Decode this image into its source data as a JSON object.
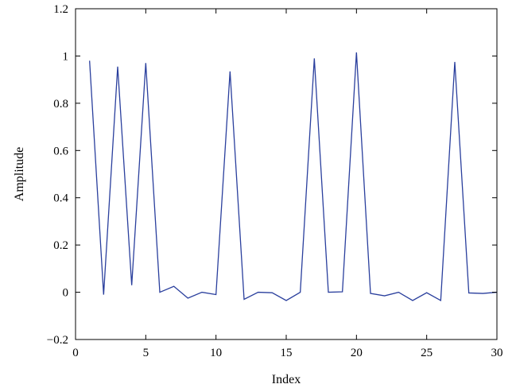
{
  "chart_data": {
    "type": "line",
    "title": "",
    "xlabel": "Index",
    "ylabel": "Amplitude",
    "xlim": [
      0,
      30
    ],
    "ylim": [
      -0.2,
      1.2
    ],
    "xticks": [
      0,
      5,
      10,
      15,
      20,
      25,
      30
    ],
    "xtick_labels": [
      "0",
      "5",
      "10",
      "15",
      "20",
      "25",
      "30"
    ],
    "yticks": [
      -0.2,
      0,
      0.2,
      0.4,
      0.6,
      0.8,
      1,
      1.2
    ],
    "ytick_labels": [
      "−0.2",
      "0",
      "0.2",
      "0.4",
      "0.6",
      "0.8",
      "1",
      "1.2"
    ],
    "grid": false,
    "series": [
      {
        "color": "#2a3f9d",
        "x": [
          1,
          2,
          3,
          4,
          5,
          6,
          7,
          8,
          9,
          10,
          11,
          12,
          13,
          14,
          15,
          16,
          17,
          18,
          19,
          20,
          21,
          22,
          23,
          24,
          25,
          26,
          27,
          28,
          29,
          30
        ],
        "y": [
          0.98,
          -0.01,
          0.955,
          0.03,
          0.97,
          0.0,
          0.025,
          -0.025,
          0.0,
          -0.01,
          0.935,
          -0.03,
          0.0,
          -0.002,
          -0.035,
          0.0,
          0.99,
          0.0,
          0.002,
          1.015,
          -0.005,
          -0.015,
          0.0,
          -0.035,
          -0.002,
          -0.035,
          0.975,
          -0.003,
          -0.005,
          0.0
        ]
      }
    ]
  }
}
